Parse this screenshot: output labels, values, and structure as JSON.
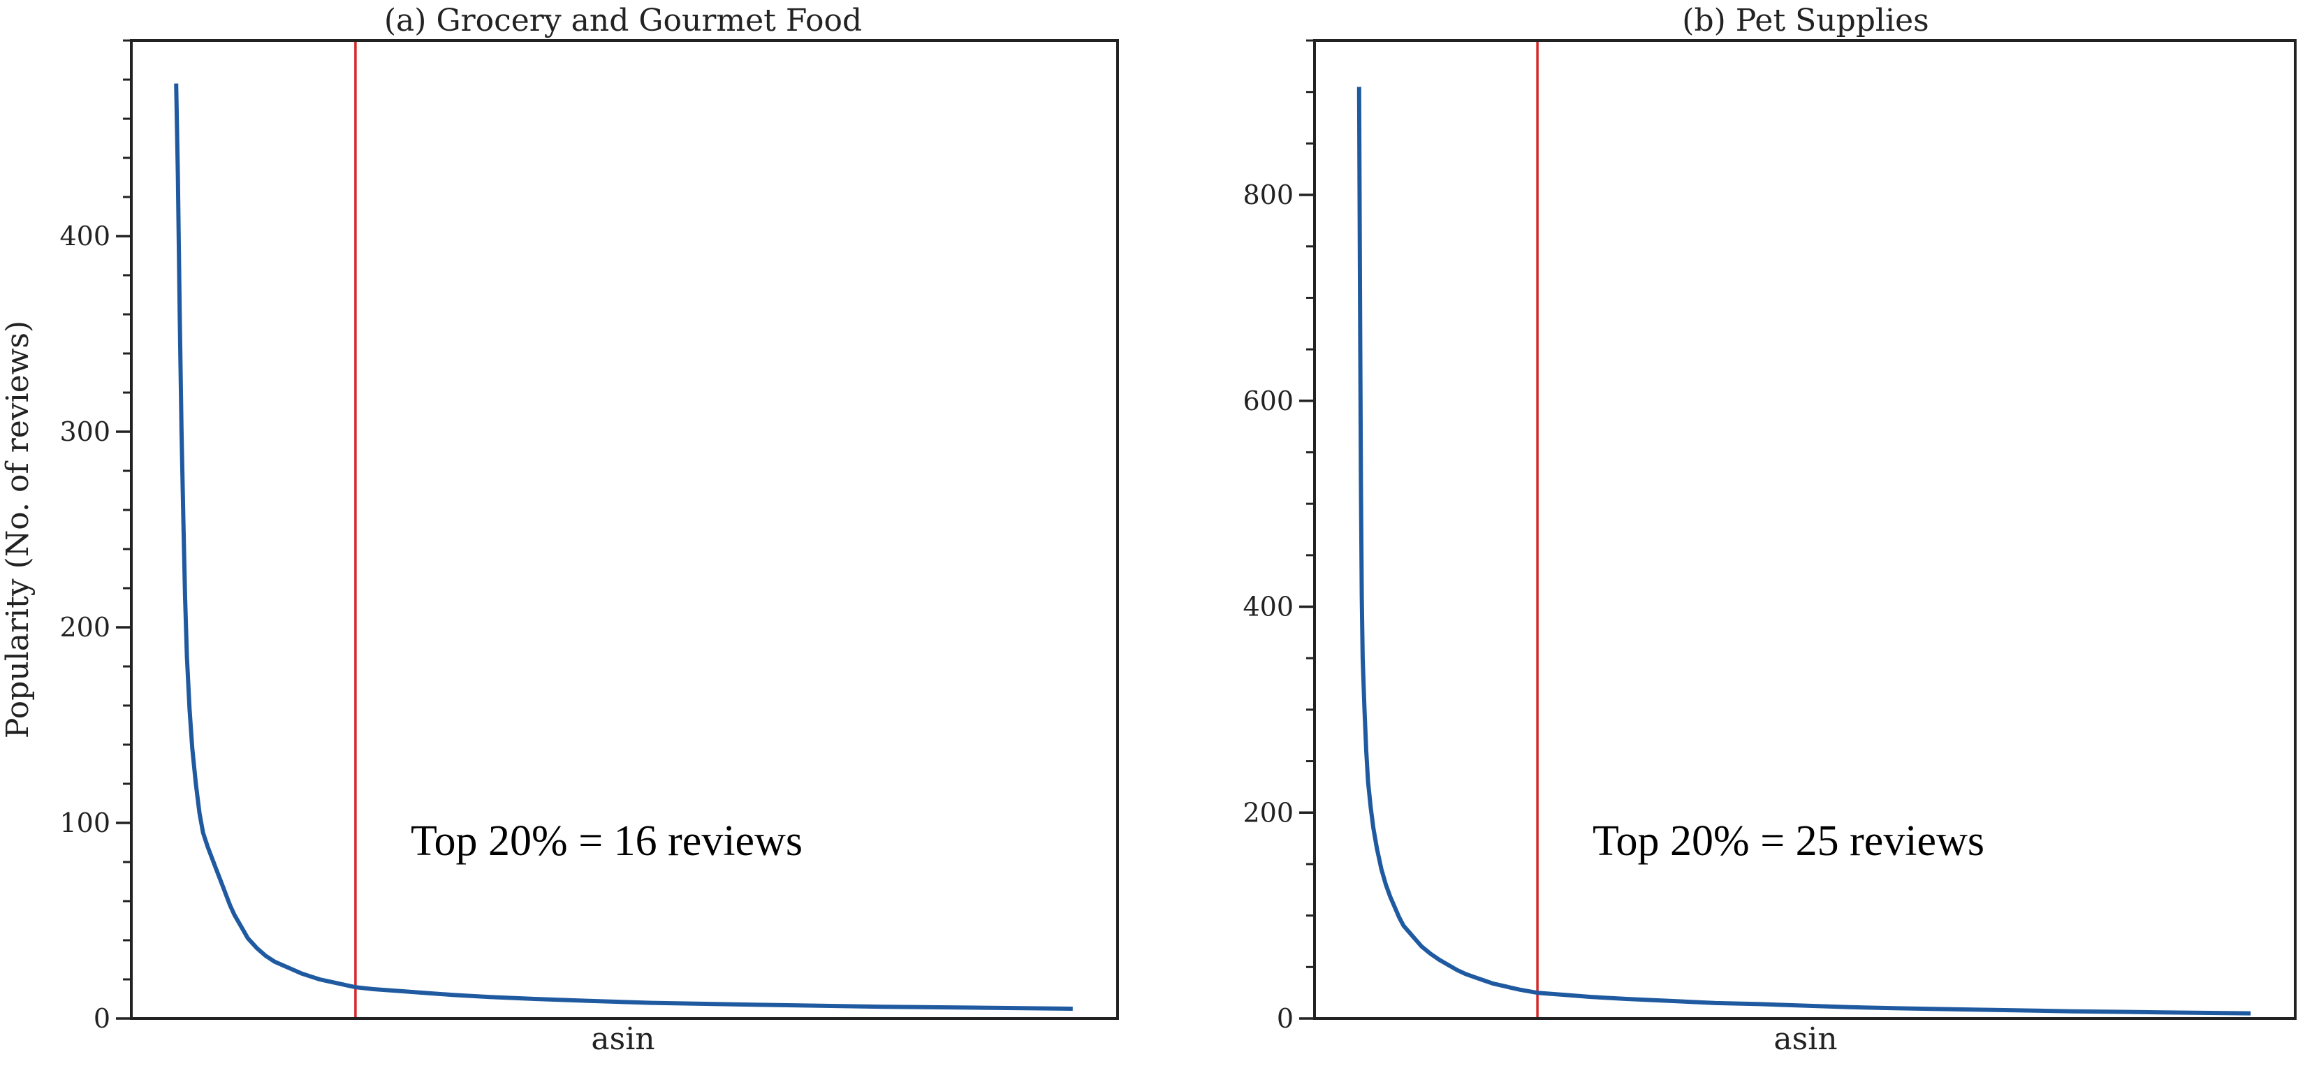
{
  "colors": {
    "curve": "#1f5aa0",
    "cutoff_line": "#d62728",
    "axes": "#222222",
    "background": "#ffffff"
  },
  "chart_data": [
    {
      "type": "line",
      "title": "(a) Grocery and Gourmet Food",
      "xlabel": "asin",
      "ylabel": "Popularity (No. of reviews)",
      "ylim": [
        0,
        500
      ],
      "yticks": [
        0,
        100,
        200,
        300,
        400
      ],
      "ytick_labels": [
        "0",
        "100",
        "200",
        "300",
        "400"
      ],
      "y_minor_step": 20,
      "xlim": [
        -0.05,
        1.05
      ],
      "x_ticks_visible": false,
      "grid": false,
      "legend": "none",
      "cutoff_x": 0.2,
      "annotation": "Top 20% = 16 reviews",
      "series": [
        {
          "points": [
            [
              0.0,
              478
            ],
            [
              0.002,
              430
            ],
            [
              0.004,
              360
            ],
            [
              0.006,
              300
            ],
            [
              0.008,
              255
            ],
            [
              0.01,
              215
            ],
            [
              0.012,
              185
            ],
            [
              0.015,
              158
            ],
            [
              0.018,
              138
            ],
            [
              0.022,
              120
            ],
            [
              0.026,
              105
            ],
            [
              0.03,
              95
            ],
            [
              0.035,
              88
            ],
            [
              0.04,
              82
            ],
            [
              0.045,
              76
            ],
            [
              0.05,
              70
            ],
            [
              0.055,
              64
            ],
            [
              0.06,
              58
            ],
            [
              0.065,
              53
            ],
            [
              0.07,
              49
            ],
            [
              0.075,
              45
            ],
            [
              0.08,
              41
            ],
            [
              0.09,
              36
            ],
            [
              0.1,
              32
            ],
            [
              0.11,
              29
            ],
            [
              0.12,
              27
            ],
            [
              0.13,
              25
            ],
            [
              0.14,
              23
            ],
            [
              0.15,
              21.5
            ],
            [
              0.16,
              20
            ],
            [
              0.17,
              19
            ],
            [
              0.18,
              18
            ],
            [
              0.19,
              17
            ],
            [
              0.2,
              16
            ],
            [
              0.22,
              15
            ],
            [
              0.25,
              14
            ],
            [
              0.28,
              13
            ],
            [
              0.31,
              12
            ],
            [
              0.35,
              11
            ],
            [
              0.4,
              10
            ],
            [
              0.46,
              9
            ],
            [
              0.53,
              8
            ],
            [
              0.65,
              7
            ],
            [
              0.79,
              6
            ],
            [
              0.9,
              5.5
            ],
            [
              1.0,
              5
            ]
          ]
        }
      ]
    },
    {
      "type": "line",
      "title": "(b) Pet Supplies",
      "xlabel": "asin",
      "ylabel": "",
      "ylim": [
        0,
        950
      ],
      "yticks": [
        0,
        200,
        400,
        600,
        800
      ],
      "ytick_labels": [
        "0",
        "200",
        "400",
        "600",
        "800"
      ],
      "y_minor_step": 50,
      "xlim": [
        -0.05,
        1.05
      ],
      "x_ticks_visible": false,
      "grid": false,
      "legend": "none",
      "cutoff_x": 0.2,
      "annotation": "Top 20% = 25 reviews",
      "series": [
        {
          "points": [
            [
              0.0,
              905
            ],
            [
              0.001,
              700
            ],
            [
              0.002,
              520
            ],
            [
              0.003,
              410
            ],
            [
              0.004,
              350
            ],
            [
              0.006,
              300
            ],
            [
              0.008,
              260
            ],
            [
              0.01,
              230
            ],
            [
              0.013,
              205
            ],
            [
              0.016,
              185
            ],
            [
              0.02,
              165
            ],
            [
              0.025,
              145
            ],
            [
              0.03,
              130
            ],
            [
              0.035,
              118
            ],
            [
              0.04,
              108
            ],
            [
              0.045,
              98
            ],
            [
              0.05,
              90
            ],
            [
              0.06,
              80
            ],
            [
              0.07,
              70
            ],
            [
              0.08,
              63
            ],
            [
              0.09,
              57
            ],
            [
              0.1,
              52
            ],
            [
              0.11,
              47
            ],
            [
              0.12,
              43
            ],
            [
              0.13,
              40
            ],
            [
              0.14,
              37
            ],
            [
              0.15,
              34
            ],
            [
              0.16,
              32
            ],
            [
              0.17,
              30
            ],
            [
              0.18,
              28
            ],
            [
              0.19,
              26.5
            ],
            [
              0.2,
              25
            ],
            [
              0.23,
              23
            ],
            [
              0.26,
              21
            ],
            [
              0.3,
              19
            ],
            [
              0.35,
              17
            ],
            [
              0.4,
              15
            ],
            [
              0.45,
              14
            ],
            [
              0.5,
              12.5
            ],
            [
              0.55,
              11
            ],
            [
              0.6,
              10
            ],
            [
              0.7,
              8.5
            ],
            [
              0.8,
              7
            ],
            [
              0.9,
              6
            ],
            [
              1.0,
              5
            ]
          ]
        }
      ]
    }
  ]
}
